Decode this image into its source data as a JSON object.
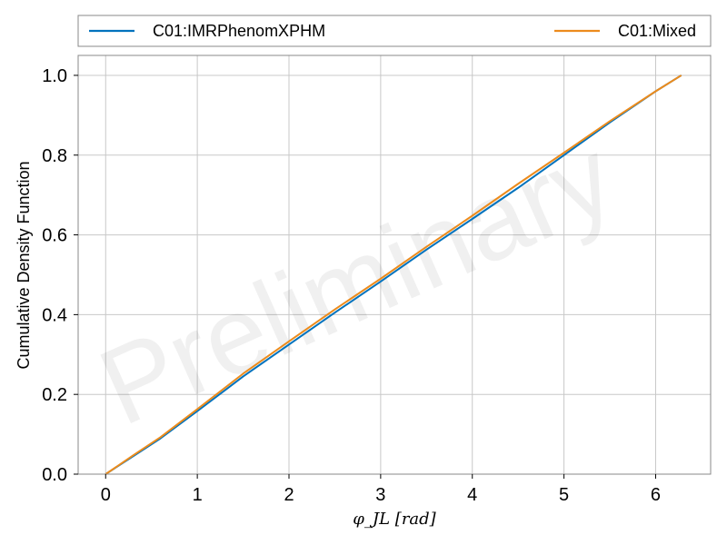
{
  "chart_data": {
    "type": "line",
    "title": "",
    "xlabel": "φ_JL [rad]",
    "ylabel": "Cumulative Density Function",
    "xlim": [
      -0.3,
      6.6
    ],
    "ylim": [
      0.0,
      1.05
    ],
    "xticks": [
      "0",
      "1",
      "2",
      "3",
      "4",
      "5",
      "6"
    ],
    "yticks": [
      "0.0",
      "0.2",
      "0.4",
      "0.6",
      "0.8",
      "1.0"
    ],
    "grid": true,
    "legend": {
      "placement": "top"
    },
    "watermark": "Preliminary",
    "series": [
      {
        "name": "C01:IMRPhenomXPHM",
        "color": "#0072bd",
        "x": [
          0,
          0.3,
          0.6,
          1.0,
          1.5,
          2.0,
          2.5,
          3.0,
          3.5,
          4.0,
          4.5,
          5.0,
          5.5,
          6.0,
          6.28
        ],
        "y": [
          0,
          0.045,
          0.09,
          0.158,
          0.245,
          0.325,
          0.405,
          0.483,
          0.563,
          0.64,
          0.718,
          0.8,
          0.882,
          0.96,
          1.0
        ]
      },
      {
        "name": "C01:Mixed",
        "color": "#ec8b1c",
        "x": [
          0,
          0.3,
          0.6,
          1.0,
          1.5,
          2.0,
          2.5,
          3.0,
          3.5,
          4.0,
          4.5,
          5.0,
          5.5,
          6.0,
          6.28
        ],
        "y": [
          0,
          0.047,
          0.093,
          0.163,
          0.252,
          0.333,
          0.413,
          0.49,
          0.57,
          0.648,
          0.728,
          0.806,
          0.885,
          0.96,
          1.0
        ]
      }
    ]
  }
}
